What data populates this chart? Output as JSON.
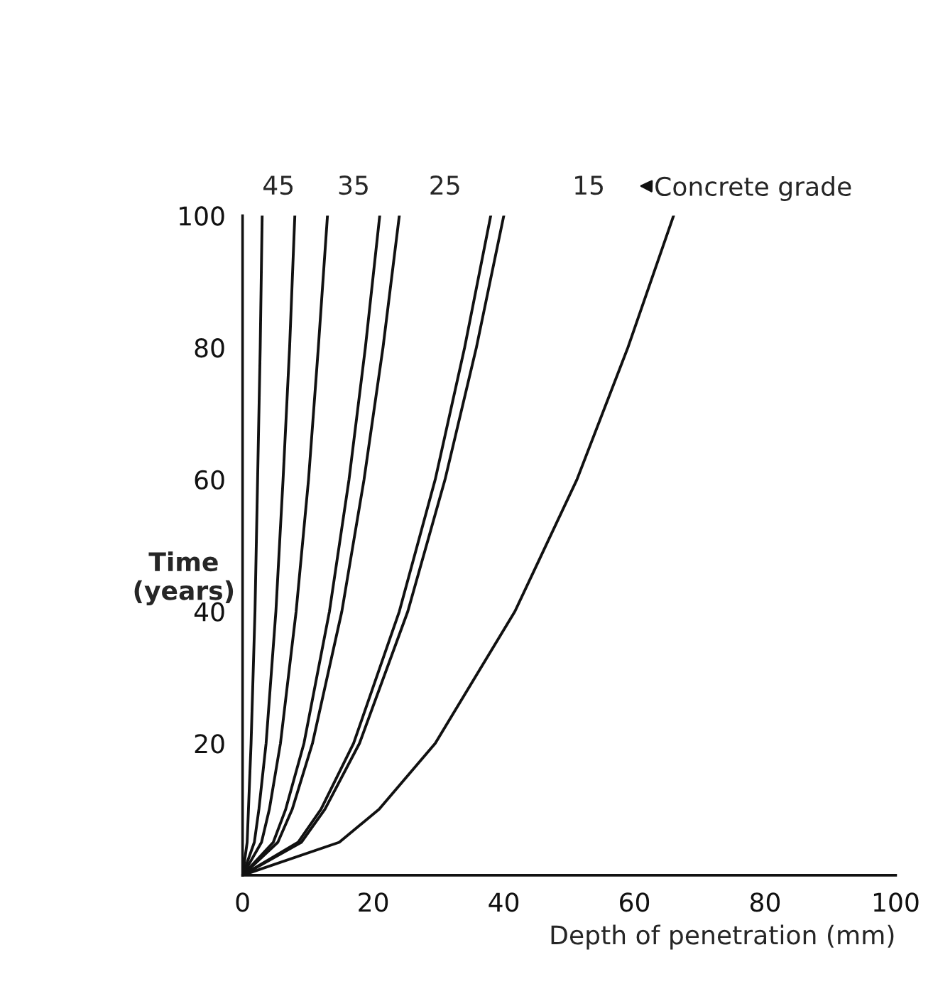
{
  "chart_data": {
    "type": "line",
    "xlabel": "Depth of penetration (mm)",
    "ylabel": "Time\n(years)",
    "xlim": [
      0,
      100
    ],
    "ylim": [
      0,
      100
    ],
    "xticks": [
      0,
      20,
      40,
      60,
      80,
      100
    ],
    "yticks": [
      20,
      40,
      60,
      80,
      100
    ],
    "grid": false,
    "marker": "none",
    "line_style": "solid",
    "annotations": [
      "45",
      "35",
      "25",
      "15",
      "Concrete grade"
    ],
    "series": [
      {
        "color": "#111111",
        "x": [
          0,
          0.7,
          0.9,
          1.3,
          1.9,
          2.3,
          2.7,
          3
        ],
        "values": [
          0,
          5,
          10,
          20,
          40,
          60,
          80,
          100
        ]
      },
      {
        "color": "#111111",
        "x": [
          0,
          1.8,
          2.5,
          3.6,
          5.1,
          6.2,
          7.2,
          8
        ],
        "values": [
          0,
          5,
          10,
          20,
          40,
          60,
          80,
          100
        ]
      },
      {
        "color": "#111111",
        "x": [
          0,
          2.9,
          4.1,
          5.8,
          8.2,
          10.1,
          11.6,
          13
        ],
        "values": [
          0,
          5,
          10,
          20,
          40,
          60,
          80,
          100
        ]
      },
      {
        "color": "#111111",
        "x": [
          0,
          4.7,
          6.6,
          9.4,
          13.3,
          16.3,
          18.8,
          21
        ],
        "values": [
          0,
          5,
          10,
          20,
          40,
          60,
          80,
          100
        ]
      },
      {
        "color": "#111111",
        "x": [
          0,
          5.4,
          7.6,
          10.7,
          15.2,
          18.6,
          21.5,
          24
        ],
        "values": [
          0,
          5,
          10,
          20,
          40,
          60,
          80,
          100
        ]
      },
      {
        "color": "#111111",
        "x": [
          0,
          8.5,
          12,
          17,
          24,
          29.5,
          34,
          38
        ],
        "values": [
          0,
          5,
          10,
          20,
          40,
          60,
          80,
          100
        ]
      },
      {
        "color": "#111111",
        "x": [
          0,
          9,
          12.6,
          17.9,
          25.3,
          31,
          35.8,
          40
        ],
        "values": [
          0,
          5,
          10,
          20,
          40,
          60,
          80,
          100
        ]
      },
      {
        "color": "#111111",
        "x": [
          0,
          14.8,
          20.9,
          29.5,
          41.7,
          51.2,
          59,
          66
        ],
        "values": [
          0,
          5,
          10,
          20,
          40,
          60,
          80,
          100
        ]
      }
    ]
  }
}
